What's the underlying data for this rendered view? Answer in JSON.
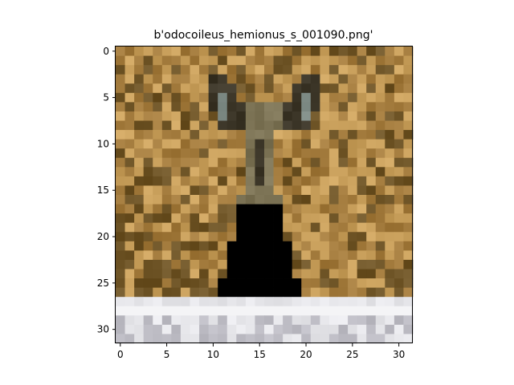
{
  "title": "b'odocoileus_hemionus_s_001090.png'",
  "image": {
    "description_hidden": null,
    "rows": 32,
    "cols": 32,
    "subject": "mule deer head with large ears, pixelated low-resolution photo"
  },
  "axes": {
    "x_ticks": [
      "0",
      "5",
      "10",
      "15",
      "20",
      "25",
      "30"
    ],
    "y_ticks": [
      "0",
      "5",
      "10",
      "15",
      "20",
      "25",
      "30"
    ],
    "x_tick_values": [
      0,
      5,
      10,
      15,
      20,
      25,
      30
    ],
    "y_tick_values": [
      0,
      5,
      10,
      15,
      20,
      25,
      30
    ]
  },
  "colors": {
    "grass_light": "#c9a05c",
    "grass_mid": "#a27a3c",
    "grass_dark": "#6e5426",
    "deer_body": "#7d7456",
    "deer_dark": "#3c3628",
    "ear_inner": "#7f8c86",
    "snow": "#e6e6ea",
    "snow_shadow": "#bdbcc4"
  }
}
